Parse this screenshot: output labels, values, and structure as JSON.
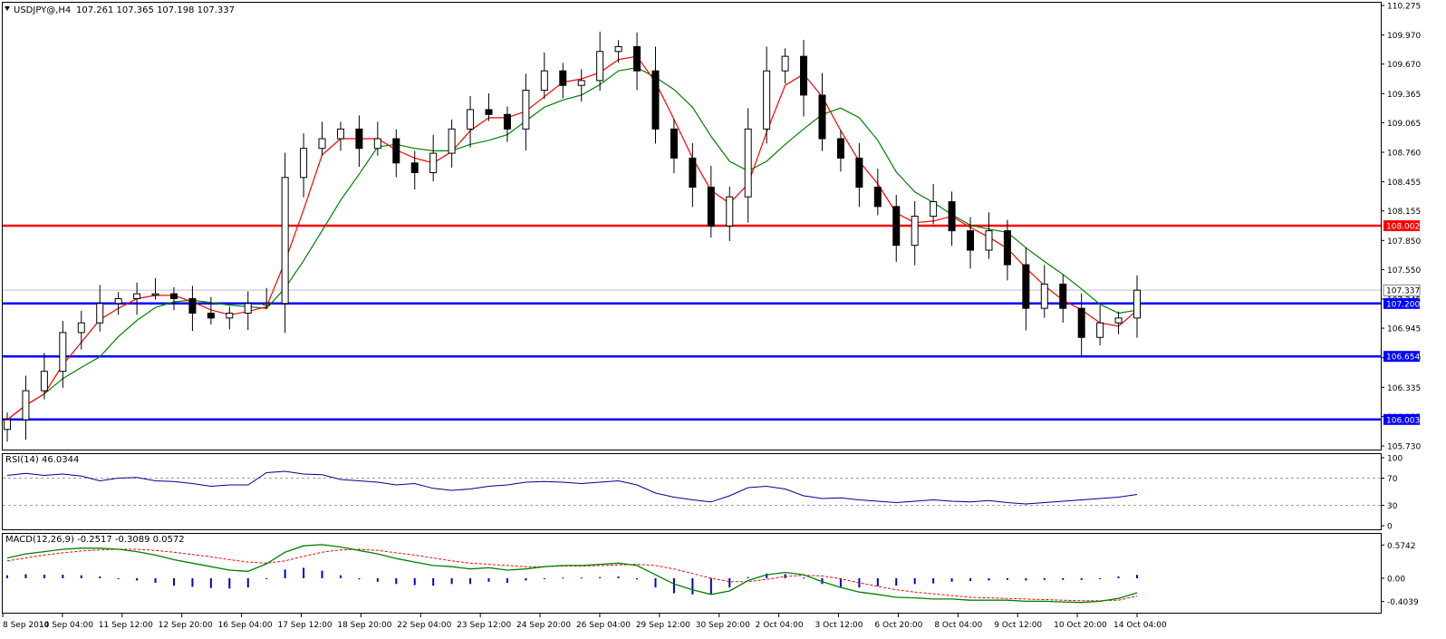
{
  "chart_data": [
    {
      "type": "candlestick",
      "symbol_label": "USDJPY@,H4",
      "ohlc_label": "107.261 107.365 107.198 107.337",
      "ylim": [
        105.73,
        110.275
      ],
      "y_ticks": [
        "110.275",
        "109.970",
        "109.670",
        "109.365",
        "109.065",
        "108.760",
        "108.455",
        "108.155",
        "107.850",
        "107.550",
        "107.245",
        "106.945",
        "106.640",
        "106.335",
        "106.035",
        "105.730"
      ],
      "last_price": 107.337,
      "last_price_label": "107.337",
      "x_ticks": [
        "8 Sep 2014",
        "10 Sep 04:00",
        "11 Sep 12:00",
        "12 Sep 20:00",
        "16 Sep 04:00",
        "17 Sep 12:00",
        "18 Sep 20:00",
        "22 Sep 04:00",
        "23 Sep 12:00",
        "24 Sep 20:00",
        "26 Sep 04:00",
        "29 Sep 12:00",
        "30 Sep 20:00",
        "2 Oct 04:00",
        "3 Oct 12:00",
        "6 Oct 20:00",
        "8 Oct 04:00",
        "9 Oct 12:00",
        "10 Oct 20:00",
        "14 Oct 04:00"
      ],
      "close_path": [
        106.0,
        106.3,
        106.5,
        106.9,
        107.0,
        107.2,
        107.25,
        107.3,
        107.3,
        107.25,
        107.1,
        107.05,
        107.1,
        107.2,
        107.2,
        108.5,
        108.8,
        108.9,
        109.0,
        108.8,
        108.9,
        108.65,
        108.55,
        108.75,
        109.0,
        109.2,
        109.15,
        109.0,
        109.4,
        109.6,
        109.45,
        109.5,
        109.8,
        109.85,
        109.6,
        109.0,
        108.7,
        108.4,
        108.0,
        108.3,
        109.0,
        109.6,
        109.75,
        109.35,
        108.9,
        108.7,
        108.4,
        108.2,
        107.8,
        108.1,
        108.25,
        107.95,
        107.75,
        107.95,
        107.6,
        107.15,
        107.4,
        107.15,
        106.85,
        107.0,
        107.05,
        107.337
      ],
      "horizontal_levels": [
        {
          "value": 108.002,
          "label": "108.002",
          "color": "#ff0000"
        },
        {
          "value": 107.2,
          "label": "107.200",
          "color": "#0000ff"
        },
        {
          "value": 106.654,
          "label": "106.654",
          "color": "#0000ff"
        },
        {
          "value": 106.003,
          "label": "106.003",
          "color": "#0000ff"
        }
      ],
      "colors": {
        "bull_body": "#ffffff",
        "bear_body": "#000000",
        "wick": "#000000",
        "ma_fast": "#ff0000",
        "ma_slow": "#008000",
        "ma_cross": "#ffff00"
      }
    },
    {
      "type": "line",
      "label": "RSI(14) 46.0344",
      "ylim": [
        0,
        100
      ],
      "y_ticks": [
        "100",
        "70",
        "30",
        "0"
      ],
      "levels": [
        70,
        30
      ],
      "values": [
        74,
        77,
        74,
        76,
        73,
        66,
        70,
        71,
        66,
        65,
        62,
        58,
        60,
        60,
        78,
        80,
        76,
        75,
        68,
        66,
        64,
        60,
        62,
        55,
        52,
        54,
        58,
        60,
        64,
        65,
        64,
        62,
        64,
        66,
        60,
        48,
        42,
        38,
        35,
        44,
        56,
        58,
        54,
        44,
        40,
        41,
        38,
        36,
        34,
        36,
        38,
        36,
        35,
        37,
        34,
        32,
        34,
        36,
        38,
        40,
        42,
        46
      ],
      "color": "#00008b"
    },
    {
      "type": "bar+line",
      "label": "MACD(12,26,9) -0.2517 -0.3089 0.0572",
      "ylim": [
        -0.55,
        0.72
      ],
      "y_ticks": [
        "0.5742",
        "0.00",
        "-0.4039"
      ],
      "macd": [
        0.35,
        0.42,
        0.46,
        0.5,
        0.52,
        0.52,
        0.5,
        0.46,
        0.4,
        0.32,
        0.26,
        0.2,
        0.14,
        0.12,
        0.25,
        0.45,
        0.56,
        0.58,
        0.54,
        0.48,
        0.42,
        0.34,
        0.28,
        0.22,
        0.2,
        0.16,
        0.18,
        0.14,
        0.16,
        0.2,
        0.22,
        0.22,
        0.24,
        0.26,
        0.22,
        0.06,
        -0.1,
        -0.2,
        -0.28,
        -0.22,
        -0.04,
        0.06,
        0.1,
        0.06,
        -0.06,
        -0.16,
        -0.24,
        -0.28,
        -0.33,
        -0.34,
        -0.36,
        -0.36,
        -0.38,
        -0.38,
        -0.38,
        -0.4,
        -0.4,
        -0.41,
        -0.42,
        -0.4,
        -0.35,
        -0.2517
      ],
      "signal": [
        0.3,
        0.35,
        0.4,
        0.44,
        0.47,
        0.49,
        0.5,
        0.5,
        0.48,
        0.45,
        0.41,
        0.37,
        0.32,
        0.28,
        0.26,
        0.3,
        0.38,
        0.45,
        0.49,
        0.5,
        0.48,
        0.44,
        0.4,
        0.35,
        0.3,
        0.26,
        0.24,
        0.22,
        0.2,
        0.2,
        0.21,
        0.21,
        0.22,
        0.23,
        0.24,
        0.22,
        0.16,
        0.08,
        0.0,
        -0.06,
        -0.06,
        -0.02,
        0.03,
        0.05,
        0.04,
        -0.01,
        -0.08,
        -0.14,
        -0.2,
        -0.24,
        -0.27,
        -0.3,
        -0.33,
        -0.34,
        -0.35,
        -0.36,
        -0.37,
        -0.38,
        -0.39,
        -0.39,
        -0.38,
        -0.3089
      ],
      "colors": {
        "histogram": "#0000cd",
        "macd": "#008000",
        "signal": "#ff0000"
      }
    }
  ]
}
